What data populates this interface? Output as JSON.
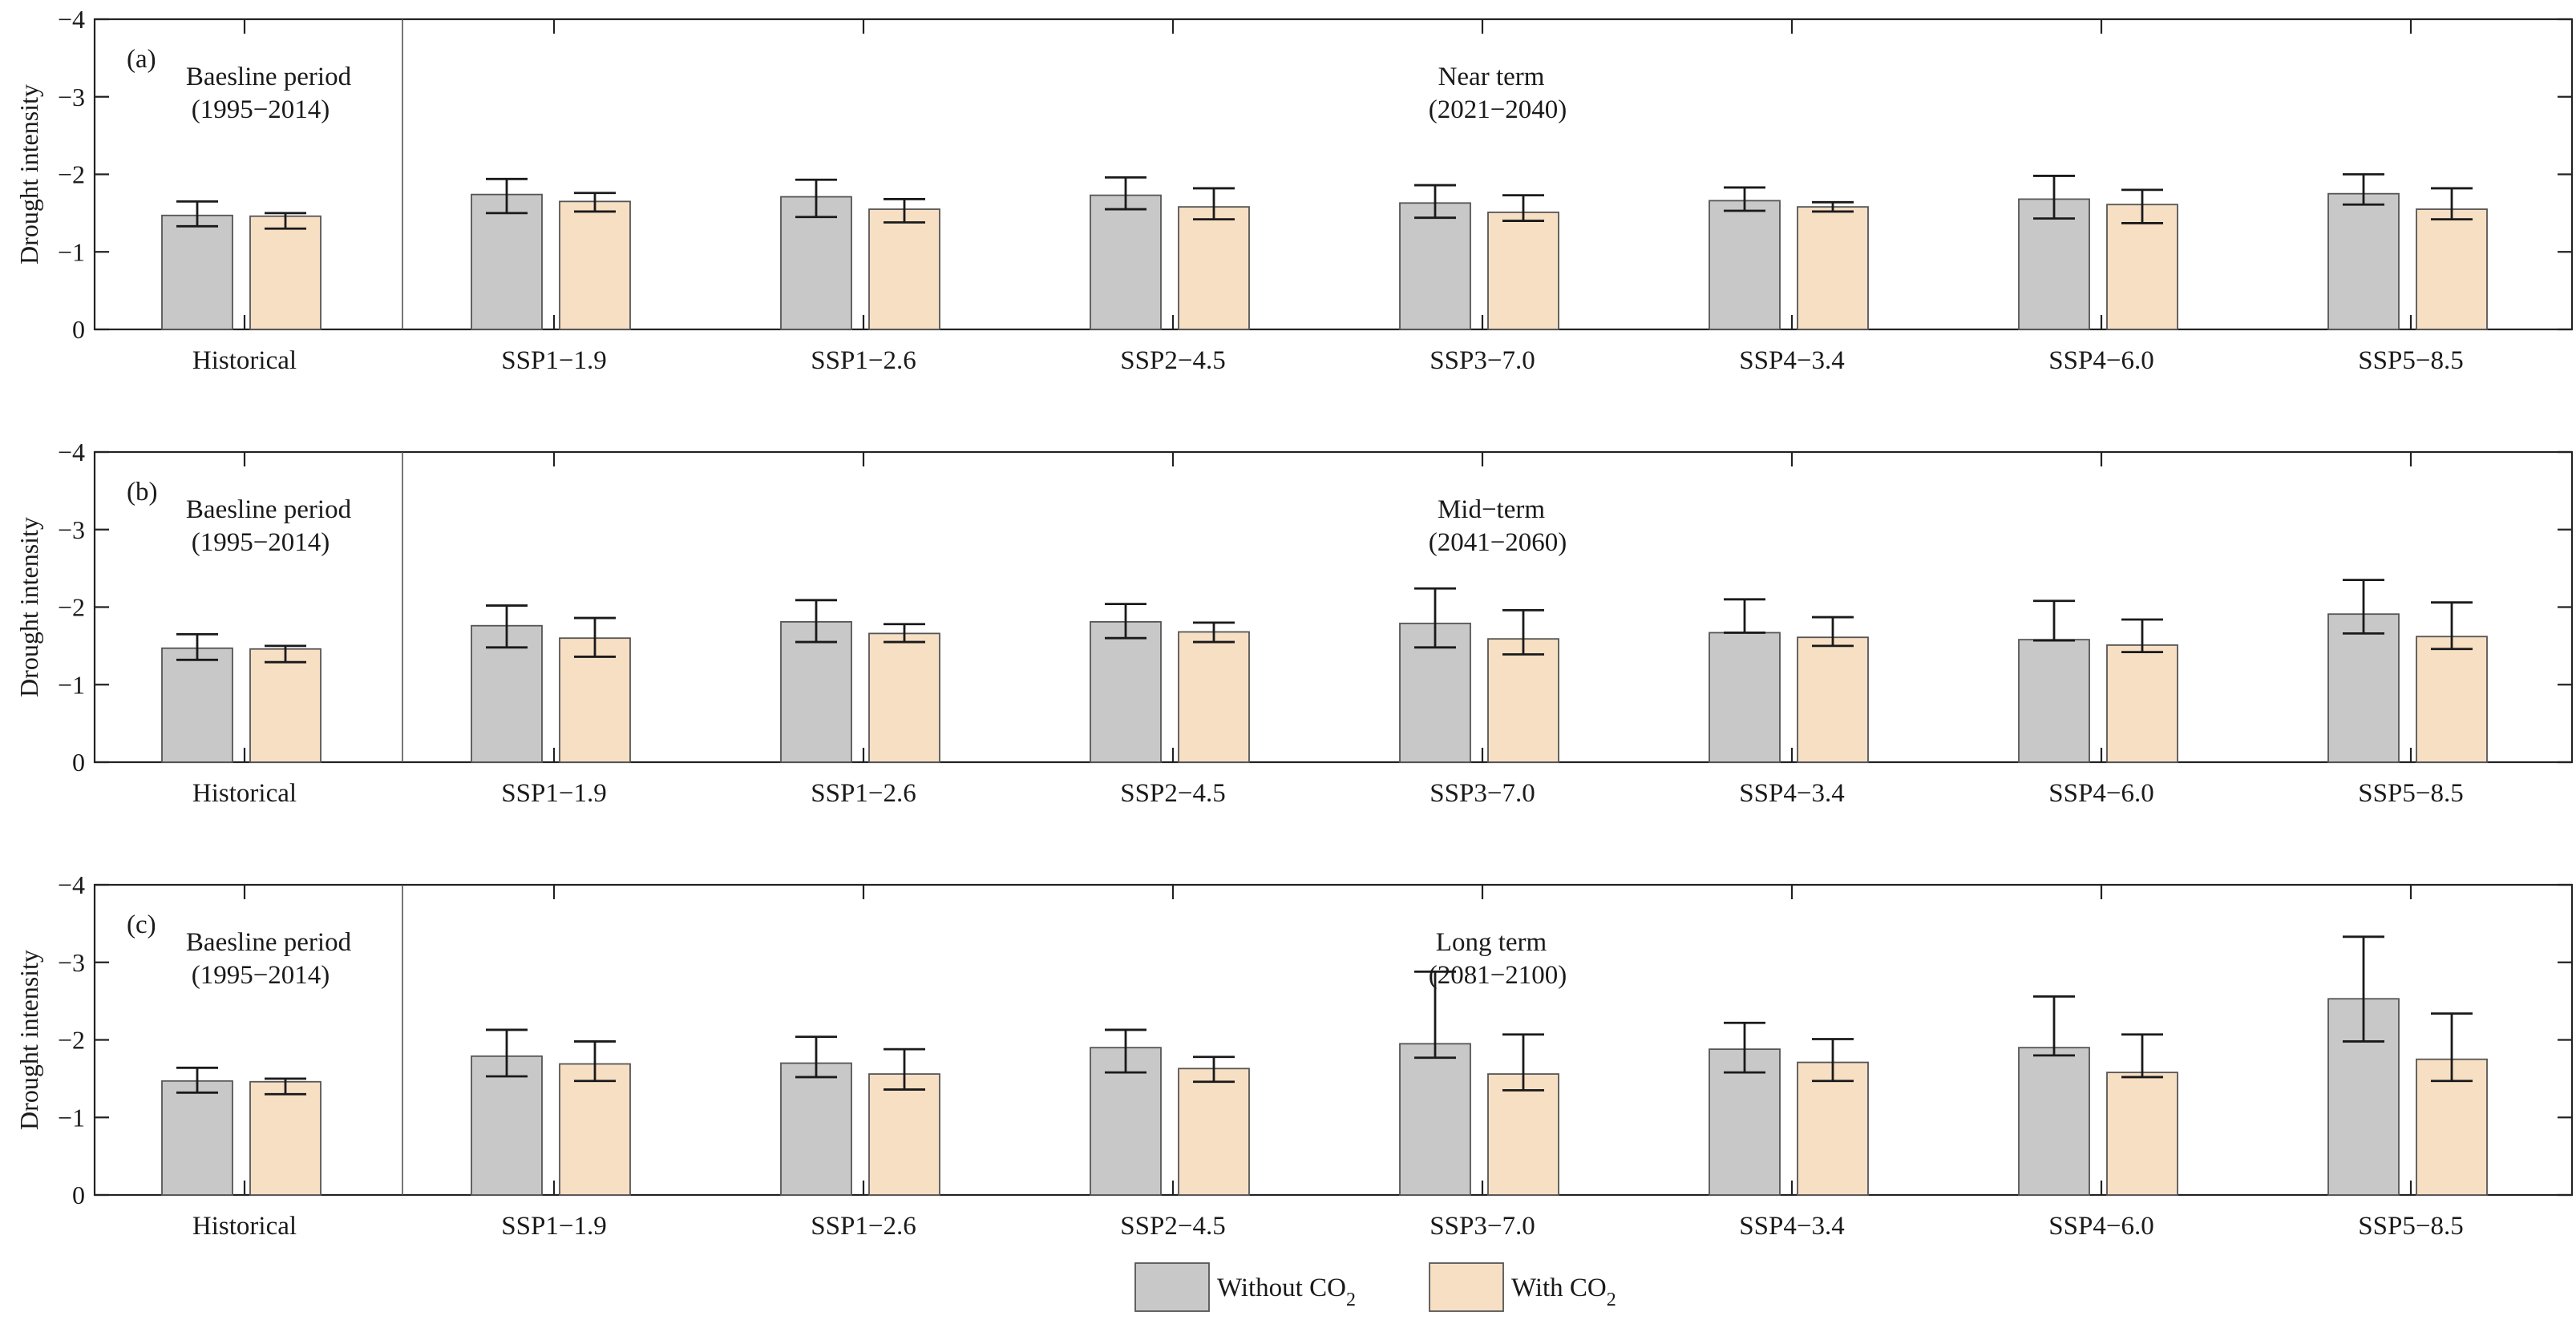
{
  "chart_data": {
    "type": "bar",
    "ylabel": "Drought intensity",
    "ylim": [
      0,
      -4
    ],
    "yticks": [
      0,
      -1,
      -2,
      -3,
      -4
    ],
    "ytick_labels": [
      "0",
      "−1",
      "−2",
      "−3",
      "−4"
    ],
    "categories": [
      "Historical",
      "SSP1−1.9",
      "SSP1−2.6",
      "SSP2−4.5",
      "SSP3−7.0",
      "SSP4−3.4",
      "SSP4−6.0",
      "SSP5−8.5"
    ],
    "legend": [
      {
        "name": "Without CO2",
        "base": "Without CO",
        "sub": "2",
        "color": "#c8c8c8"
      },
      {
        "name": "With CO2",
        "base": "With CO",
        "sub": "2",
        "color": "#f7dfc4"
      }
    ],
    "panels": [
      {
        "label": "(a)",
        "baseline_title": "Baesline period",
        "baseline_years": "(1995−2014)",
        "period_title": "Near term",
        "period_years": "(2021−2040)",
        "series": [
          {
            "name": "Without CO2",
            "values": [
              -1.47,
              -1.74,
              -1.71,
              -1.73,
              -1.63,
              -1.66,
              -1.68,
              -1.75
            ],
            "err_low": [
              -1.33,
              -1.5,
              -1.45,
              -1.55,
              -1.44,
              -1.53,
              -1.43,
              -1.61
            ],
            "err_high": [
              -1.65,
              -1.94,
              -1.93,
              -1.96,
              -1.86,
              -1.83,
              -1.98,
              -2.0
            ]
          },
          {
            "name": "With CO2",
            "values": [
              -1.46,
              -1.65,
              -1.55,
              -1.58,
              -1.51,
              -1.58,
              -1.61,
              -1.55
            ],
            "err_low": [
              -1.3,
              -1.52,
              -1.38,
              -1.42,
              -1.4,
              -1.52,
              -1.37,
              -1.42
            ],
            "err_high": [
              -1.5,
              -1.76,
              -1.68,
              -1.82,
              -1.73,
              -1.64,
              -1.8,
              -1.82
            ]
          }
        ]
      },
      {
        "label": "(b)",
        "baseline_title": "Baesline period",
        "baseline_years": "(1995−2014)",
        "period_title": "Mid−term",
        "period_years": "(2041−2060)",
        "series": [
          {
            "name": "Without CO2",
            "values": [
              -1.47,
              -1.76,
              -1.81,
              -1.81,
              -1.79,
              -1.67,
              -1.58,
              -1.91
            ],
            "err_low": [
              -1.32,
              -1.48,
              -1.55,
              -1.6,
              -1.48,
              -1.67,
              -1.57,
              -1.66
            ],
            "err_high": [
              -1.65,
              -2.02,
              -2.09,
              -2.04,
              -2.24,
              -2.1,
              -2.08,
              -2.35
            ]
          },
          {
            "name": "With CO2",
            "values": [
              -1.46,
              -1.6,
              -1.66,
              -1.68,
              -1.59,
              -1.61,
              -1.51,
              -1.62
            ],
            "err_low": [
              -1.29,
              -1.36,
              -1.55,
              -1.55,
              -1.39,
              -1.5,
              -1.42,
              -1.46
            ],
            "err_high": [
              -1.5,
              -1.86,
              -1.78,
              -1.8,
              -1.96,
              -1.87,
              -1.84,
              -2.06
            ]
          }
        ]
      },
      {
        "label": "(c)",
        "baseline_title": "Baesline period",
        "baseline_years": "(1995−2014)",
        "period_title": "Long term",
        "period_years": "(2081−2100)",
        "series": [
          {
            "name": "Without CO2",
            "values": [
              -1.47,
              -1.79,
              -1.7,
              -1.9,
              -1.95,
              -1.88,
              -1.9,
              -2.53
            ],
            "err_low": [
              -1.32,
              -1.53,
              -1.52,
              -1.58,
              -1.77,
              -1.58,
              -1.8,
              -1.98
            ],
            "err_high": [
              -1.64,
              -2.13,
              -2.04,
              -2.13,
              -2.88,
              -2.22,
              -2.56,
              -3.33
            ]
          },
          {
            "name": "With CO2",
            "values": [
              -1.46,
              -1.69,
              -1.56,
              -1.63,
              -1.56,
              -1.71,
              -1.58,
              -1.75
            ],
            "err_low": [
              -1.3,
              -1.47,
              -1.36,
              -1.46,
              -1.35,
              -1.47,
              -1.52,
              -1.47
            ],
            "err_high": [
              -1.5,
              -1.98,
              -1.88,
              -1.78,
              -2.07,
              -2.01,
              -2.07,
              -2.34
            ]
          }
        ]
      }
    ]
  }
}
